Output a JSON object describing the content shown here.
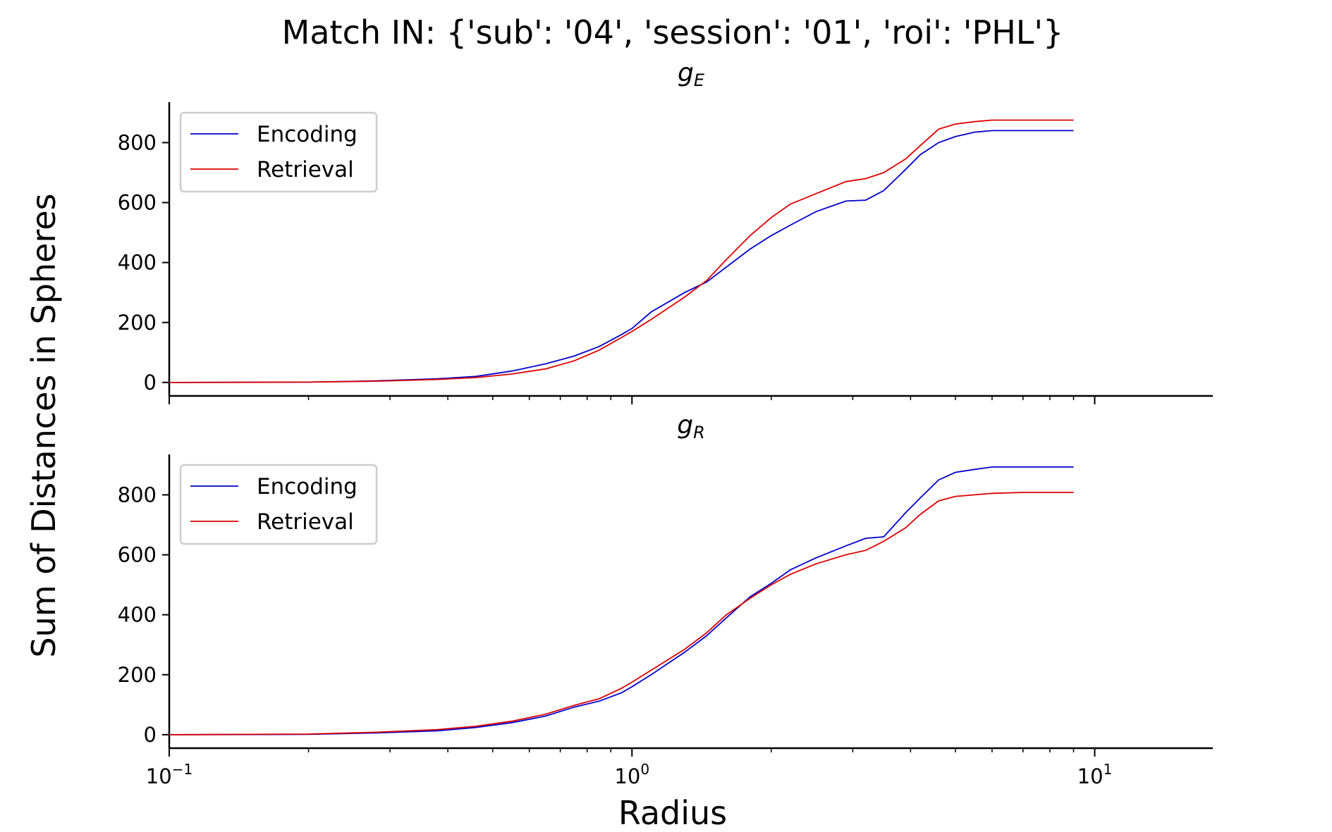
{
  "chart_data": {
    "type": "line",
    "title": "Match IN: {'sub': '04', 'session': '01', 'roi': 'PHL'}",
    "xlabel": "Radius",
    "ylabel": "Sum of Distances in Spheres",
    "xscale": "log",
    "xlim": [
      0.1,
      18
    ],
    "x_tick_labels": [
      {
        "base": "10",
        "exp": "−1",
        "value": 0.1
      },
      {
        "base": "10",
        "exp": "0",
        "value": 1
      },
      {
        "base": "10",
        "exp": "1",
        "value": 10
      }
    ],
    "grid": false,
    "legend_position": "upper left",
    "colors": {
      "encoding": "#0000cc",
      "retrieval": "#dd0000"
    },
    "panels": [
      {
        "title_base": "g",
        "title_sub": "E",
        "ylim": [
          -45,
          935
        ],
        "yticks": [
          "0",
          "200",
          "400",
          "600",
          "800"
        ],
        "legend": [
          "Encoding",
          "Retrieval"
        ],
        "series": [
          {
            "name": "Encoding",
            "color": "#0000cc",
            "x": [
              0.1,
              0.2,
              0.28,
              0.38,
              0.46,
              0.55,
              0.65,
              0.75,
              0.85,
              0.95,
              1.0,
              1.1,
              1.3,
              1.45,
              1.6,
              1.8,
              2.0,
              2.2,
              2.5,
              2.9,
              3.2,
              3.5,
              3.9,
              4.2,
              4.6,
              5.0,
              5.5,
              6.0,
              7.0,
              9.0
            ],
            "y": [
              0,
              1,
              5,
              12,
              20,
              38,
              62,
              88,
              120,
              160,
              180,
              235,
              300,
              335,
              385,
              445,
              490,
              525,
              570,
              605,
              608,
              640,
              710,
              760,
              800,
              820,
              835,
              840,
              840,
              840
            ]
          },
          {
            "name": "Retrieval",
            "color": "#dd0000",
            "x": [
              0.1,
              0.2,
              0.28,
              0.38,
              0.46,
              0.55,
              0.65,
              0.75,
              0.85,
              0.95,
              1.0,
              1.1,
              1.3,
              1.45,
              1.6,
              1.8,
              2.0,
              2.2,
              2.5,
              2.9,
              3.2,
              3.5,
              3.9,
              4.2,
              4.6,
              5.0,
              5.5,
              6.0,
              7.0,
              9.0
            ],
            "y": [
              0,
              1,
              4,
              10,
              16,
              28,
              45,
              72,
              108,
              150,
              170,
              210,
              285,
              340,
              410,
              490,
              550,
              595,
              630,
              670,
              680,
              700,
              745,
              790,
              845,
              862,
              870,
              875,
              875,
              875
            ]
          }
        ]
      },
      {
        "title_base": "g",
        "title_sub": "R",
        "ylim": [
          -45,
          935
        ],
        "yticks": [
          "0",
          "200",
          "400",
          "600",
          "800"
        ],
        "legend": [
          "Encoding",
          "Retrieval"
        ],
        "series": [
          {
            "name": "Encoding",
            "color": "#0000cc",
            "x": [
              0.1,
              0.2,
              0.28,
              0.38,
              0.46,
              0.55,
              0.65,
              0.75,
              0.85,
              0.95,
              1.0,
              1.1,
              1.3,
              1.45,
              1.6,
              1.8,
              2.0,
              2.2,
              2.5,
              2.9,
              3.2,
              3.5,
              3.9,
              4.2,
              4.6,
              5.0,
              5.5,
              6.0,
              7.0,
              9.0
            ],
            "y": [
              0,
              1,
              6,
              13,
              24,
              40,
              62,
              92,
              112,
              140,
              160,
              200,
              275,
              330,
              390,
              460,
              505,
              550,
              590,
              630,
              655,
              660,
              740,
              790,
              850,
              875,
              885,
              893,
              893,
              893
            ]
          },
          {
            "name": "Retrieval",
            "color": "#dd0000",
            "x": [
              0.1,
              0.2,
              0.28,
              0.38,
              0.46,
              0.55,
              0.65,
              0.75,
              0.85,
              0.95,
              1.0,
              1.1,
              1.3,
              1.45,
              1.6,
              1.8,
              2.0,
              2.2,
              2.5,
              2.9,
              3.2,
              3.5,
              3.9,
              4.2,
              4.6,
              5.0,
              5.5,
              6.0,
              7.0,
              9.0
            ],
            "y": [
              0,
              2,
              8,
              17,
              28,
              45,
              68,
              98,
              120,
              155,
              175,
              215,
              285,
              340,
              400,
              455,
              500,
              535,
              570,
              600,
              615,
              645,
              690,
              735,
              780,
              795,
              800,
              805,
              808,
              808
            ]
          }
        ]
      }
    ]
  }
}
